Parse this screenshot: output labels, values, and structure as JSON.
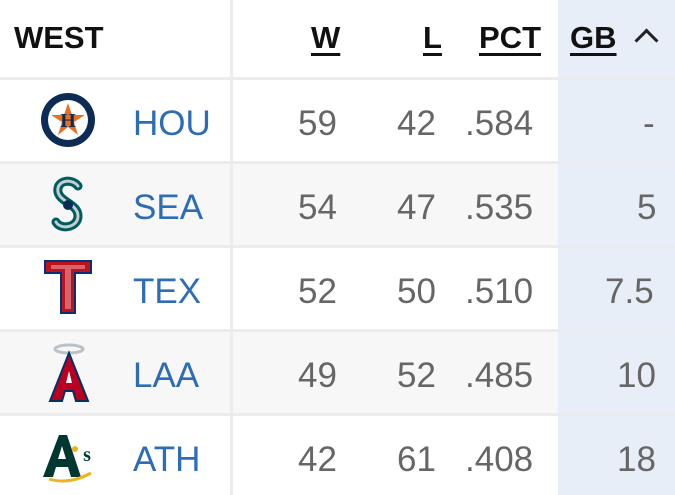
{
  "header": {
    "division": "WEST",
    "w": "W",
    "l": "L",
    "pct": "PCT",
    "gb": "GB"
  },
  "rows": [
    {
      "team": "HOU",
      "w": "59",
      "l": "42",
      "pct": ".584",
      "gb": "-"
    },
    {
      "team": "SEA",
      "w": "54",
      "l": "47",
      "pct": ".535",
      "gb": "5"
    },
    {
      "team": "TEX",
      "w": "52",
      "l": "50",
      "pct": ".510",
      "gb": "7.5"
    },
    {
      "team": "LAA",
      "w": "49",
      "l": "52",
      "pct": ".485",
      "gb": "10"
    },
    {
      "team": "ATH",
      "w": "42",
      "l": "61",
      "pct": ".408",
      "gb": "18"
    }
  ],
  "logos": {
    "HOU": "astros-logo-icon",
    "SEA": "mariners-logo-icon",
    "TEX": "rangers-logo-icon",
    "LAA": "angels-logo-icon",
    "ATH": "athletics-logo-icon"
  },
  "colors": {
    "team_link": "#2d6db5",
    "sorted_column_bg": "#e8eef7",
    "alt_row_bg": "#f7f7f7"
  }
}
